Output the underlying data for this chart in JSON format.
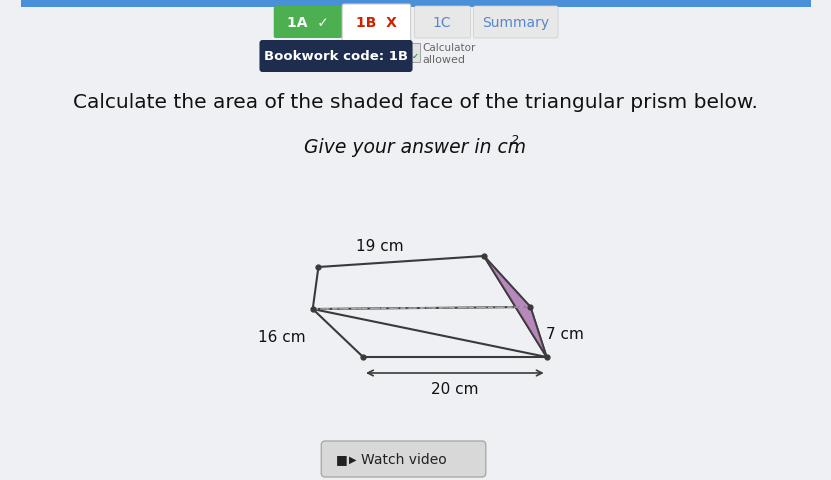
{
  "bg_color": "#eef0f3",
  "question_line1": "Calculate the area of the shaded face of the triangular prism below.",
  "question_line2": "Give your answer in cm",
  "watch_video_text": "Watch video",
  "dim_19": "19 cm",
  "dim_16": "16 cm",
  "dim_20": "20 cm",
  "dim_7": "7 cm",
  "shaded_color": "#b07ab5",
  "prism_line_color": "#3a3a3a",
  "dashed_line_color": "#aaaaaa",
  "tab_1a_bg": "#4caf50",
  "tab_1a_fg": "#ffffff",
  "tab_1b_bg": "#f5f5f5",
  "tab_1b_fg": "#cc2200",
  "tab_1c_bg": "#e8e8e8",
  "tab_1c_fg": "#5588cc",
  "tab_summary_bg": "#e8e8e8",
  "tab_summary_fg": "#5588cc",
  "bookwork_bg": "#1e2d4e",
  "bookwork_fg": "#ffffff",
  "header_top_color": "#4a90d9"
}
